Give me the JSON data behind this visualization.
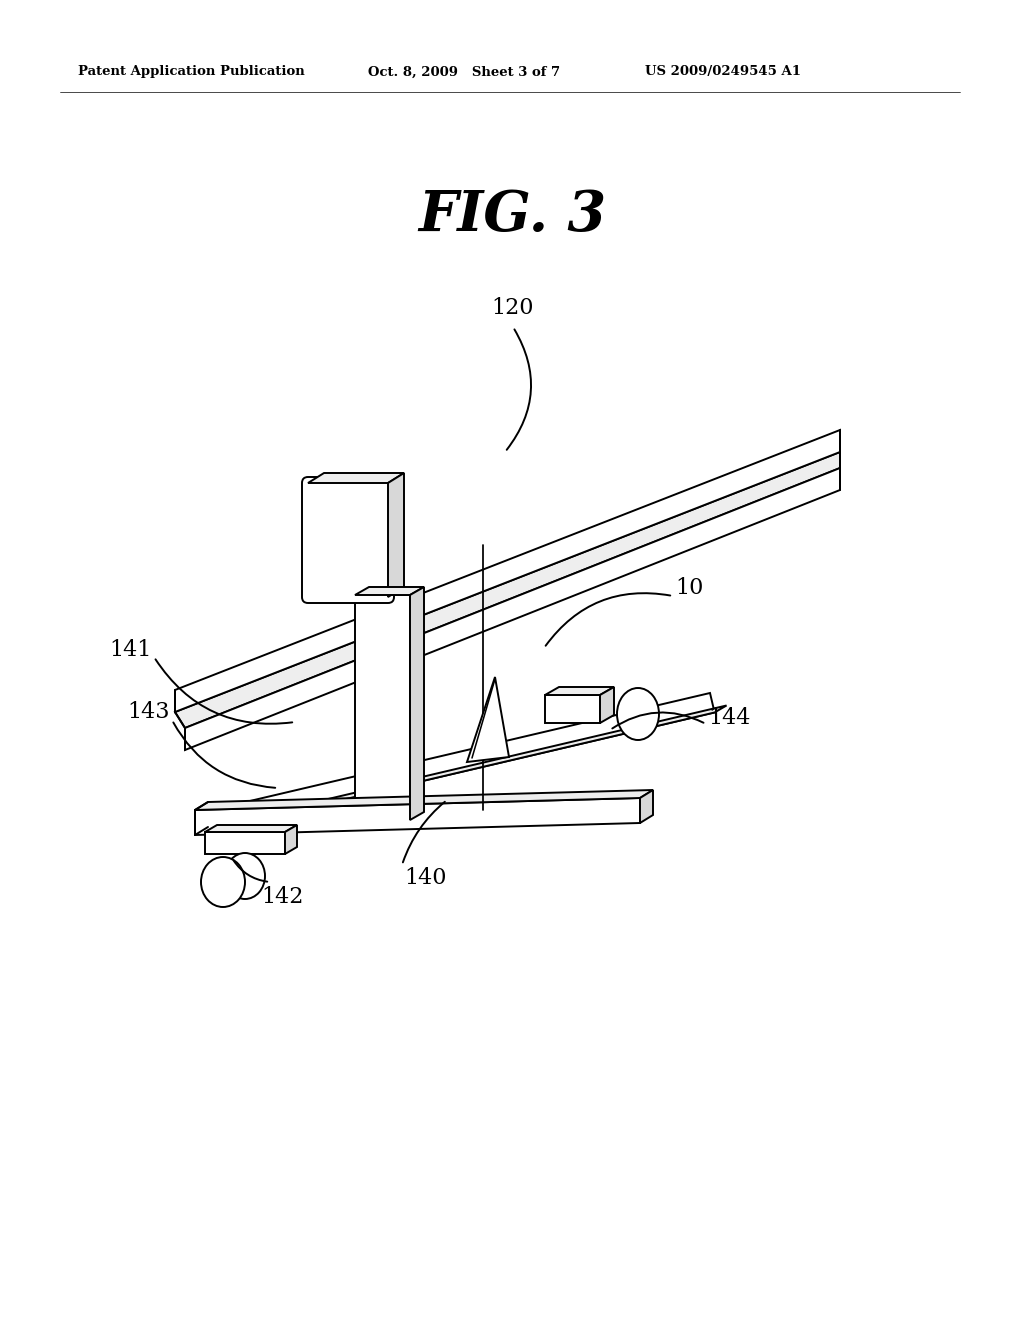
{
  "bg_color": "#ffffff",
  "line_color": "#000000",
  "header_left": "Patent Application Publication",
  "header_mid": "Oct. 8, 2009   Sheet 3 of 7",
  "header_right": "US 2009/0249545 A1",
  "fig_title": "FIG. 3",
  "lw": 1.4
}
